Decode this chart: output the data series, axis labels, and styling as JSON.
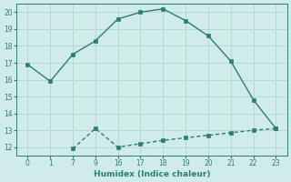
{
  "line1_x_labels": [
    0,
    1,
    7,
    9,
    16,
    17,
    18,
    19,
    20,
    21,
    22,
    23
  ],
  "line1_y": [
    16.9,
    15.9,
    17.5,
    18.3,
    19.6,
    20.0,
    20.2,
    19.5,
    18.6,
    17.1,
    14.8,
    13.1
  ],
  "line2_x_labels": [
    7,
    9,
    16,
    17,
    18,
    19,
    20,
    21,
    22,
    23
  ],
  "line2_y": [
    11.9,
    13.1,
    12.0,
    12.2,
    12.4,
    12.55,
    12.7,
    12.85,
    13.0,
    13.1
  ],
  "all_x_labels": [
    0,
    1,
    7,
    9,
    16,
    17,
    18,
    19,
    20,
    21,
    22,
    23
  ],
  "line_color": "#2e7d70",
  "bg_color": "#d0ecea",
  "grid_color": "#b8d8d4",
  "xlabel": "Humidex (Indice chaleur)",
  "ylim": [
    11.5,
    20.5
  ],
  "yticks": [
    12,
    13,
    14,
    15,
    16,
    17,
    18,
    19,
    20
  ],
  "marker_size": 2.5,
  "linewidth": 1.0
}
